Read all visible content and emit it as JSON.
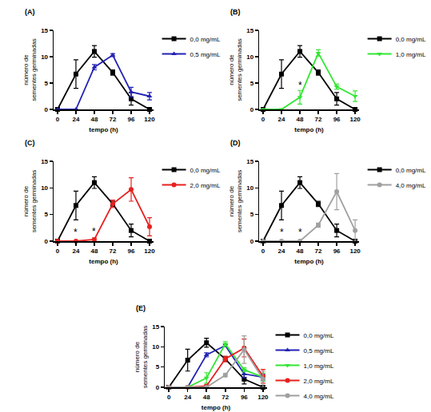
{
  "chart_data": [
    {
      "type": "line",
      "title": "(A)",
      "xlabel": "tempo (h)",
      "ylabel": [
        "número de",
        "sementes germinadas"
      ],
      "x": [
        0,
        24,
        48,
        72,
        96,
        120
      ],
      "xlim": [
        -5,
        125
      ],
      "xticks": [
        0,
        24,
        48,
        72,
        96,
        120
      ],
      "ylim": [
        0,
        15
      ],
      "yticks": [
        0,
        5,
        10,
        15
      ],
      "legend": "right",
      "grid": false,
      "series": [
        {
          "name": "0,0 mg/mL",
          "color": "#000000",
          "marker": "square",
          "values": [
            0,
            6.7,
            11,
            7,
            2,
            0
          ],
          "error": [
            0,
            2.7,
            1.1,
            0.5,
            1.2,
            0
          ]
        },
        {
          "name": "0,5 mg/mL",
          "color": "#2323b4",
          "marker": "triangle-up",
          "values": [
            0,
            0,
            8,
            10.3,
            3.3,
            2.5
          ],
          "error": [
            0,
            0,
            0.5,
            0.3,
            0.9,
            0.7
          ]
        }
      ],
      "annotations": []
    },
    {
      "type": "line",
      "title": "(B)",
      "xlabel": "tempo (h)",
      "ylabel": [
        "número de",
        "sementes germinadas"
      ],
      "x": [
        0,
        24,
        48,
        72,
        96,
        120
      ],
      "xlim": [
        -5,
        125
      ],
      "xticks": [
        0,
        24,
        48,
        72,
        96,
        120
      ],
      "ylim": [
        0,
        15
      ],
      "yticks": [
        0,
        5,
        10,
        15
      ],
      "legend": "right",
      "grid": false,
      "series": [
        {
          "name": "0,0 mg/mL",
          "color": "#000000",
          "marker": "square",
          "values": [
            0,
            6.7,
            11,
            7,
            2,
            0
          ],
          "error": [
            0,
            2.7,
            1.1,
            0.5,
            1.2,
            0
          ]
        },
        {
          "name": "1,0 mg/mL",
          "color": "#33e633",
          "marker": "triangle-down",
          "values": [
            0,
            0,
            2.3,
            10.7,
            4.3,
            2.5
          ],
          "error": [
            0,
            0,
            1.3,
            0.6,
            0.5,
            1
          ]
        }
      ],
      "annotations": [
        {
          "x": 48,
          "y": 4.6,
          "text": "*"
        }
      ]
    },
    {
      "type": "line",
      "title": "(C)",
      "xlabel": "tempo (h)",
      "ylabel": [
        "número de",
        "sementes germinadas"
      ],
      "x": [
        0,
        24,
        48,
        72,
        96,
        120
      ],
      "xlim": [
        -5,
        125
      ],
      "xticks": [
        0,
        24,
        48,
        72,
        96,
        120
      ],
      "ylim": [
        0,
        15
      ],
      "yticks": [
        0,
        5,
        10,
        15
      ],
      "legend": "right",
      "grid": false,
      "series": [
        {
          "name": "0,0 mg/mL",
          "color": "#000000",
          "marker": "square",
          "values": [
            0,
            6.7,
            11,
            7,
            2,
            0
          ],
          "error": [
            0,
            2.7,
            1.1,
            0.5,
            1.2,
            0
          ]
        },
        {
          "name": "2,0 mg/mL",
          "color": "#e6211e",
          "marker": "circle",
          "values": [
            0,
            0,
            0.3,
            7,
            9.7,
            2.7
          ],
          "error": [
            0,
            0,
            0.3,
            0.7,
            2.2,
            1.7
          ]
        }
      ],
      "annotations": [
        {
          "x": 24,
          "y": 1.6,
          "text": "*"
        },
        {
          "x": 48,
          "y": 1.8,
          "text": "*"
        }
      ]
    },
    {
      "type": "line",
      "title": "(D)",
      "xlabel": "tempo (h)",
      "ylabel": [
        "número de",
        "sementes germinadas"
      ],
      "x": [
        0,
        24,
        48,
        72,
        96,
        120
      ],
      "xlim": [
        -5,
        125
      ],
      "xticks": [
        0,
        24,
        48,
        72,
        96,
        120
      ],
      "ylim": [
        0,
        15
      ],
      "yticks": [
        0,
        5,
        10,
        15
      ],
      "legend": "right",
      "grid": false,
      "series": [
        {
          "name": "0,0 mg/mL",
          "color": "#000000",
          "marker": "square",
          "values": [
            0,
            6.7,
            11,
            7,
            2,
            0
          ],
          "error": [
            0,
            2.7,
            1.1,
            0.5,
            1.2,
            0
          ]
        },
        {
          "name": "4,0 mg/mL",
          "color": "#a0a0a0",
          "marker": "circle",
          "values": [
            0,
            0,
            0,
            3,
            9.3,
            2
          ],
          "error": [
            0,
            0,
            0,
            0.4,
            3.4,
            2
          ]
        }
      ],
      "annotations": [
        {
          "x": 24,
          "y": 1.6,
          "text": "*"
        },
        {
          "x": 48,
          "y": 1.6,
          "text": "*"
        }
      ]
    },
    {
      "type": "line",
      "title": "(E)",
      "xlabel": "tempo (h)",
      "ylabel": [
        "número de",
        "sementes germinadas"
      ],
      "x": [
        0,
        24,
        48,
        72,
        96,
        120
      ],
      "xlim": [
        -5,
        125
      ],
      "xticks": [
        0,
        24,
        48,
        72,
        96,
        120
      ],
      "ylim": [
        0,
        15
      ],
      "yticks": [
        0,
        5,
        10,
        15
      ],
      "legend": "right",
      "grid": false,
      "series": [
        {
          "name": "0,0 mg/mL",
          "color": "#000000",
          "marker": "square",
          "values": [
            0,
            6.7,
            11,
            7,
            2,
            0
          ],
          "error": [
            0,
            2.7,
            1.1,
            0.5,
            1.2,
            0
          ]
        },
        {
          "name": "0,5 mg/mL",
          "color": "#2323b4",
          "marker": "triangle-up",
          "values": [
            0,
            0,
            8,
            10.3,
            3.3,
            2.5
          ],
          "error": [
            0,
            0,
            0.5,
            0.3,
            0.9,
            0.7
          ]
        },
        {
          "name": "1,0 mg/mL",
          "color": "#33e633",
          "marker": "triangle-down",
          "values": [
            0,
            0,
            2.3,
            10.7,
            4.3,
            2.5
          ],
          "error": [
            0,
            0,
            1.3,
            0.6,
            0.5,
            1
          ]
        },
        {
          "name": "2,0 mg/mL",
          "color": "#e6211e",
          "marker": "circle",
          "values": [
            0,
            0,
            0.3,
            7,
            9.7,
            2.7
          ],
          "error": [
            0,
            0,
            0.3,
            0.7,
            2.2,
            1.7
          ]
        },
        {
          "name": "4,0 mg/mL",
          "color": "#a0a0a0",
          "marker": "circle",
          "values": [
            0,
            0,
            0,
            3,
            9.3,
            2
          ],
          "error": [
            0,
            0,
            0,
            0.4,
            3.4,
            2
          ]
        }
      ],
      "annotations": []
    }
  ]
}
